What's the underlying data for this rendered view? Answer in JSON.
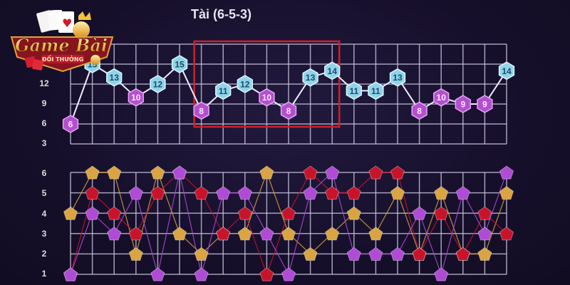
{
  "title": "Tài (6-5-3)",
  "logo": {
    "text_main": "Game Bài",
    "text_sub": "ĐỔI THƯỞNG"
  },
  "colors": {
    "tai": "#8fd4ea",
    "xiu": "#b44fd0",
    "dice1": "#d9a441",
    "dice2": "#c8142b",
    "dice3": "#b04bd6",
    "highlight_box": "#d0202a",
    "grid": "#c8c4dc"
  },
  "chart_data": [
    {
      "type": "line",
      "title": "Tài (6-5-3)",
      "yticks": [
        "12",
        "9",
        "6",
        "3"
      ],
      "ylim": [
        3,
        18
      ],
      "threshold_tai": 11,
      "values": [
        6,
        15,
        13,
        10,
        12,
        15,
        8,
        11,
        12,
        10,
        8,
        13,
        14,
        11,
        11,
        13,
        8,
        10,
        9,
        9,
        14
      ],
      "highlight_range": [
        6,
        12
      ]
    },
    {
      "type": "line",
      "yticks": [
        "6",
        "5",
        "4",
        "3",
        "2",
        "1"
      ],
      "ylim": [
        1,
        6
      ],
      "series": [
        {
          "color": "dice1",
          "values": [
            4,
            6,
            6,
            2,
            6,
            3,
            2,
            3,
            3,
            6,
            3,
            2,
            3,
            4,
            3,
            5,
            2,
            5,
            2,
            2,
            5
          ]
        },
        {
          "color": "dice2",
          "values": [
            1,
            5,
            4,
            3,
            5,
            6,
            5,
            3,
            4,
            1,
            4,
            6,
            5,
            5,
            6,
            6,
            2,
            4,
            2,
            4,
            3
          ]
        },
        {
          "color": "dice3",
          "values": [
            1,
            4,
            3,
            5,
            1,
            6,
            1,
            5,
            5,
            3,
            1,
            5,
            6,
            2,
            2,
            2,
            4,
            1,
            5,
            3,
            6
          ]
        }
      ]
    }
  ]
}
